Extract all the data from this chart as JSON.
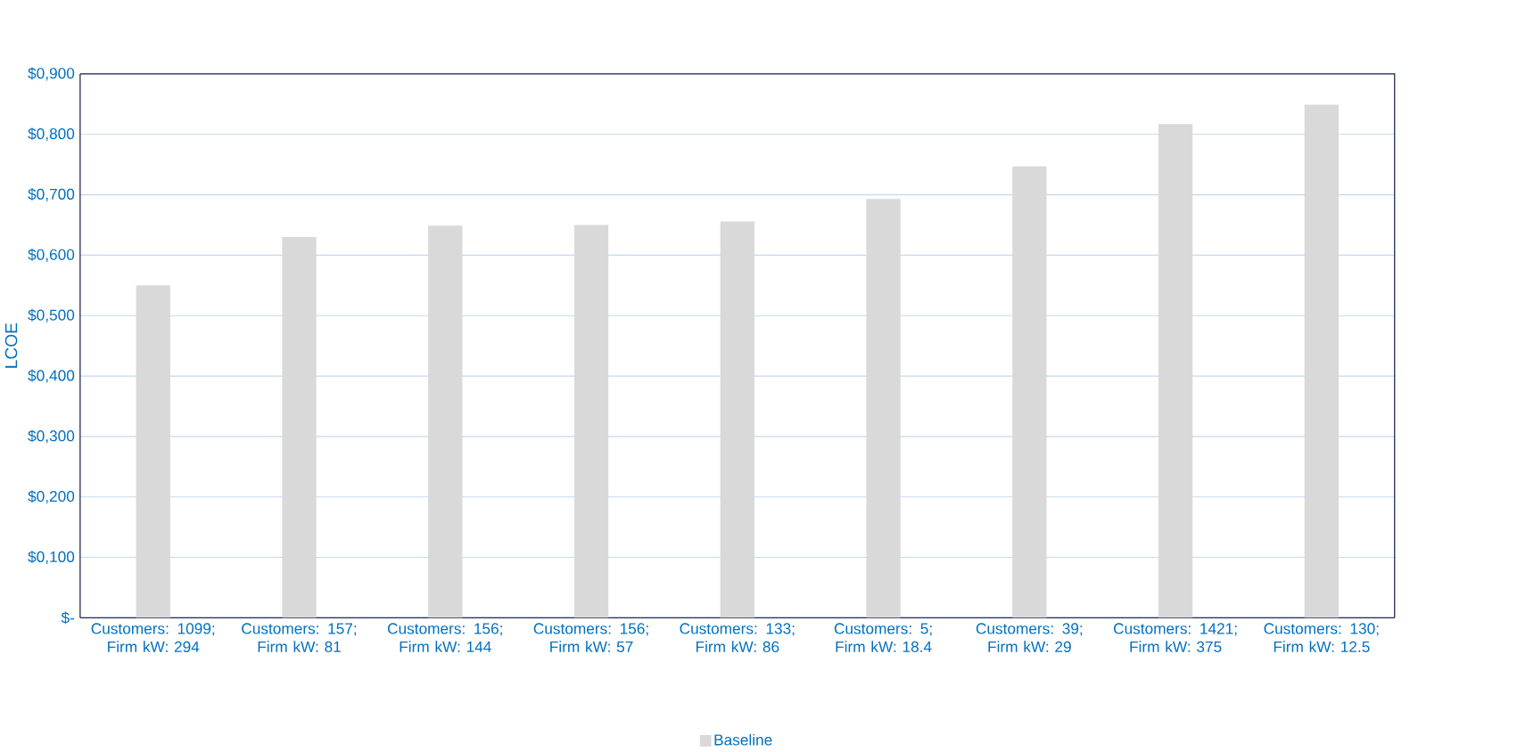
{
  "chart_data": {
    "type": "bar",
    "ylabel": "LCOE",
    "categories": [
      "Customers: 1099; Firm kW: 294",
      "Customers: 157; Firm kW: 81",
      "Customers: 156; Firm kW: 144",
      "Customers: 156; Firm kW: 57",
      "Customers: 133; Firm kW: 86",
      "Customers: 5; Firm kW: 18.4",
      "Customers: 39; Firm kW: 29",
      "Customers: 1421; Firm kW: 375",
      "Customers: 130; Firm kW: 12.5"
    ],
    "series": [
      {
        "name": "Baseline",
        "color": "#d9d9d9",
        "values": [
          0.55,
          0.63,
          0.649,
          0.65,
          0.656,
          0.693,
          0.747,
          0.817,
          0.849
        ]
      }
    ],
    "ylim": [
      0,
      0.9
    ],
    "yticks": [
      {
        "value": 0,
        "label": "$-"
      },
      {
        "value": 0.1,
        "label": "$0,100"
      },
      {
        "value": 0.2,
        "label": "$0,200"
      },
      {
        "value": 0.3,
        "label": "$0,300"
      },
      {
        "value": 0.4,
        "label": "$0,400"
      },
      {
        "value": 0.5,
        "label": "$0,500"
      },
      {
        "value": 0.6,
        "label": "$0,600"
      },
      {
        "value": 0.7,
        "label": "$0,700"
      },
      {
        "value": 0.8,
        "label": "$0,800"
      },
      {
        "value": 0.9,
        "label": "$0,900"
      }
    ],
    "grid": "y",
    "legend": "bottom"
  }
}
